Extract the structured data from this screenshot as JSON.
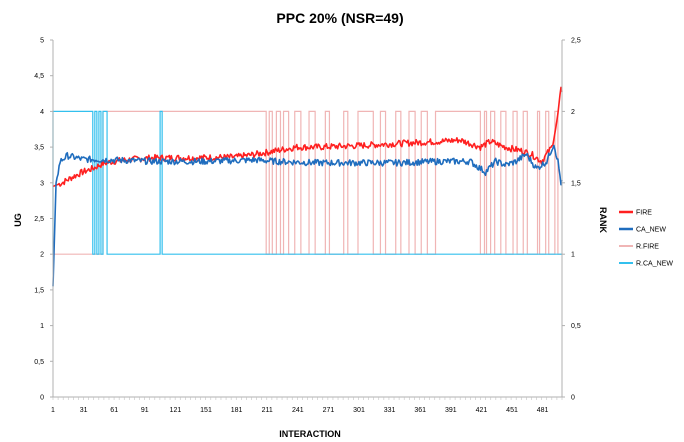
{
  "chart_data": {
    "type": "line",
    "title": "PPC 20% (NSR=49)",
    "xlabel": "INTERACTION",
    "ylabel": "UG",
    "y2label": "RANK",
    "x_range": [
      1,
      500
    ],
    "x_ticks": [
      "1",
      "31",
      "61",
      "91",
      "121",
      "151",
      "181",
      "211",
      "241",
      "271",
      "301",
      "331",
      "361",
      "391",
      "421",
      "451",
      "481"
    ],
    "ylim": [
      0,
      5
    ],
    "y_ticks": [
      "0",
      "0,5",
      "1",
      "1,5",
      "2",
      "2,5",
      "3",
      "3,5",
      "4",
      "4,5",
      "5"
    ],
    "y2lim": [
      0,
      2.5
    ],
    "y2_ticks": [
      "0",
      "0,5",
      "1",
      "1,5",
      "2",
      "2,5"
    ],
    "legend_position": "right",
    "grid": false,
    "series": [
      {
        "name": "FIRE",
        "axis": "left",
        "color": "#ff2020",
        "points": [
          [
            1,
            2.95
          ],
          [
            10,
            3.0
          ],
          [
            20,
            3.08
          ],
          [
            30,
            3.15
          ],
          [
            40,
            3.2
          ],
          [
            50,
            3.27
          ],
          [
            60,
            3.3
          ],
          [
            80,
            3.33
          ],
          [
            100,
            3.35
          ],
          [
            140,
            3.35
          ],
          [
            180,
            3.36
          ],
          [
            200,
            3.4
          ],
          [
            220,
            3.45
          ],
          [
            240,
            3.5
          ],
          [
            260,
            3.5
          ],
          [
            300,
            3.52
          ],
          [
            340,
            3.55
          ],
          [
            380,
            3.58
          ],
          [
            400,
            3.6
          ],
          [
            410,
            3.55
          ],
          [
            420,
            3.5
          ],
          [
            430,
            3.58
          ],
          [
            440,
            3.52
          ],
          [
            450,
            3.48
          ],
          [
            460,
            3.45
          ],
          [
            470,
            3.4
          ],
          [
            480,
            3.3
          ],
          [
            490,
            3.5
          ],
          [
            495,
            3.85
          ],
          [
            499,
            4.3
          ]
        ]
      },
      {
        "name": "CA_NEW",
        "axis": "left",
        "color": "#1f6dbe",
        "points": [
          [
            1,
            1.55
          ],
          [
            4,
            3.0
          ],
          [
            8,
            3.3
          ],
          [
            15,
            3.38
          ],
          [
            30,
            3.33
          ],
          [
            60,
            3.32
          ],
          [
            100,
            3.3
          ],
          [
            150,
            3.3
          ],
          [
            200,
            3.32
          ],
          [
            220,
            3.3
          ],
          [
            260,
            3.28
          ],
          [
            300,
            3.28
          ],
          [
            340,
            3.28
          ],
          [
            380,
            3.3
          ],
          [
            410,
            3.3
          ],
          [
            425,
            3.15
          ],
          [
            435,
            3.3
          ],
          [
            445,
            3.25
          ],
          [
            455,
            3.3
          ],
          [
            465,
            3.4
          ],
          [
            475,
            3.2
          ],
          [
            485,
            3.3
          ],
          [
            492,
            3.55
          ],
          [
            496,
            3.3
          ],
          [
            499,
            3.0
          ]
        ]
      },
      {
        "name": "R.FIRE",
        "axis": "right",
        "color": "#f0b5b5",
        "base": 1,
        "spike_to": 2,
        "spikes": [
          [
            50,
            210
          ],
          [
            213,
            216
          ],
          [
            220,
            224
          ],
          [
            227,
            232
          ],
          [
            238,
            244
          ],
          [
            252,
            258
          ],
          [
            268,
            272
          ],
          [
            286,
            290
          ],
          [
            300,
            315
          ],
          [
            322,
            327
          ],
          [
            337,
            342
          ],
          [
            350,
            356
          ],
          [
            362,
            368
          ],
          [
            376,
            420
          ],
          [
            424,
            426
          ],
          [
            430,
            434
          ],
          [
            440,
            445
          ],
          [
            452,
            456
          ],
          [
            462,
            466
          ],
          [
            476,
            478
          ],
          [
            484,
            487
          ],
          [
            493,
            496
          ]
        ]
      },
      {
        "name": "R.CA_NEW",
        "axis": "right",
        "color": "#33c0ee",
        "base": 1,
        "spike_to": 2,
        "spikes": [
          [
            1,
            40
          ],
          [
            42,
            44
          ],
          [
            46,
            48
          ],
          [
            50,
            54
          ],
          [
            106,
            108
          ]
        ]
      }
    ]
  }
}
